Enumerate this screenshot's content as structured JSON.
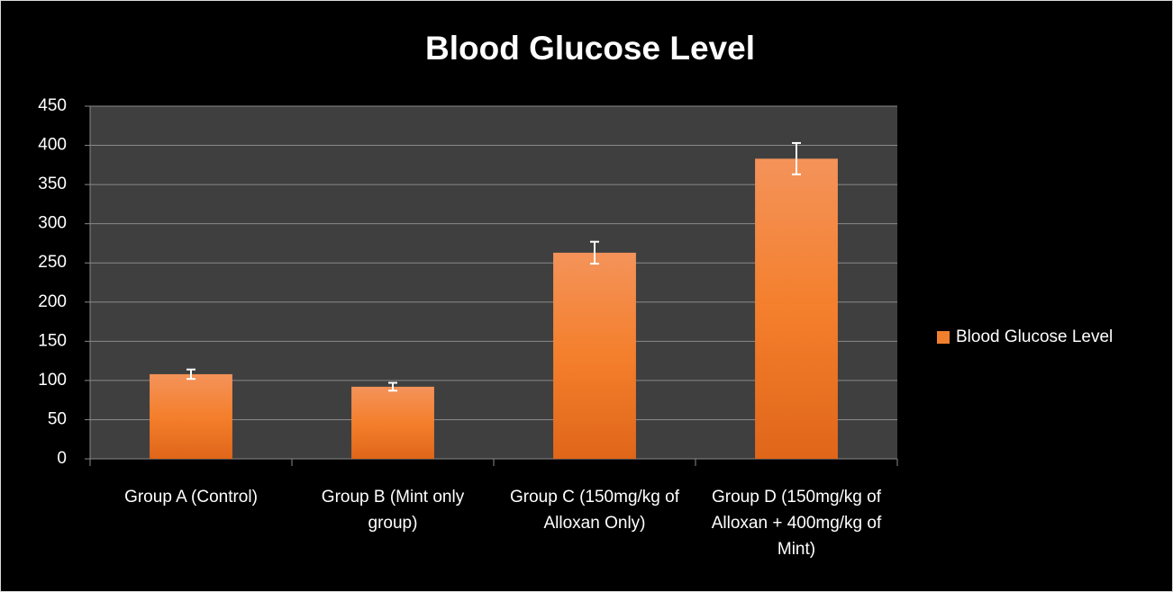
{
  "chart_data": {
    "type": "bar",
    "title": "Blood Glucose Level",
    "categories": [
      "Group A (Control)",
      "Group B (Mint only group)",
      "Group C (150mg/kg of Alloxan Only)",
      "Group D (150mg/kg of Alloxan + 400mg/kg of Mint)"
    ],
    "series": [
      {
        "name": "Blood Glucose Level",
        "color": "#f07f2e",
        "values": [
          108,
          92,
          263,
          383
        ],
        "errors": [
          6,
          5,
          14,
          20
        ]
      }
    ],
    "ylim": [
      0,
      450
    ],
    "yticks": [
      0,
      50,
      100,
      150,
      200,
      250,
      300,
      350,
      400,
      450
    ],
    "grid": true,
    "legend": "right"
  }
}
